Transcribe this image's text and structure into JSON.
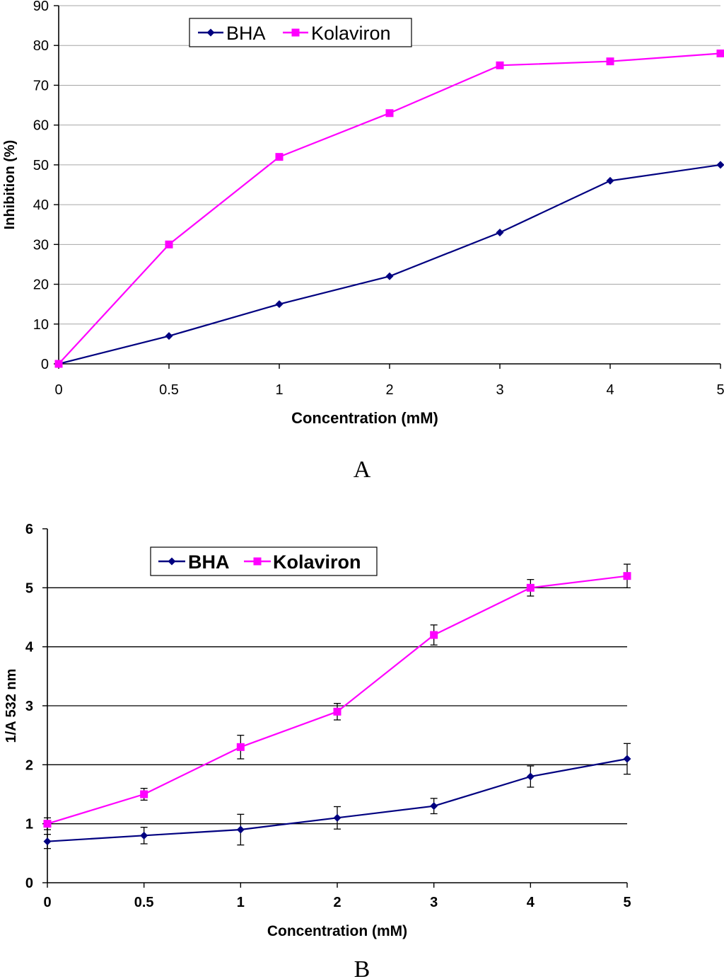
{
  "chart_data": [
    {
      "panel_label": "A",
      "type": "line",
      "categories": [
        "0",
        "0.5",
        "1",
        "2",
        "3",
        "4",
        "5"
      ],
      "xlabel": "Concentration (mM)",
      "ylabel": "Inhibition (%)",
      "ylim": [
        0,
        90
      ],
      "yticks": [
        "0",
        "10",
        "20",
        "30",
        "40",
        "50",
        "60",
        "70",
        "80",
        "90"
      ],
      "grid": true,
      "legend_position": "top-left",
      "series": [
        {
          "name": "BHA",
          "color": "#000080",
          "marker": "diamond",
          "values": [
            0,
            7,
            15,
            22,
            33,
            46,
            50
          ]
        },
        {
          "name": "Kolaviron",
          "color": "#ff00ff",
          "marker": "square",
          "values": [
            0,
            30,
            52,
            63,
            75,
            76,
            78
          ]
        }
      ]
    },
    {
      "panel_label": "B",
      "type": "line",
      "categories": [
        "0",
        "0.5",
        "1",
        "2",
        "3",
        "4",
        "5"
      ],
      "xlabel": "Concentration (mM)",
      "ylabel": "1/A 532 nm",
      "ylim": [
        0,
        6
      ],
      "yticks": [
        "0",
        "1",
        "2",
        "3",
        "4",
        "5",
        "6"
      ],
      "grid": true,
      "legend_position": "top-left",
      "series": [
        {
          "name": "BHA",
          "color": "#000080",
          "marker": "diamond",
          "values": [
            0.7,
            0.8,
            0.9,
            1.1,
            1.3,
            1.8,
            2.1
          ],
          "errors": [
            0.12,
            0.14,
            0.26,
            0.19,
            0.13,
            0.18,
            0.26
          ]
        },
        {
          "name": "Kolaviron",
          "color": "#ff00ff",
          "marker": "square",
          "values": [
            1.0,
            1.5,
            2.3,
            2.9,
            4.2,
            5.0,
            5.2
          ],
          "errors": [
            0.1,
            0.1,
            0.2,
            0.14,
            0.17,
            0.14,
            0.2
          ]
        }
      ]
    }
  ]
}
